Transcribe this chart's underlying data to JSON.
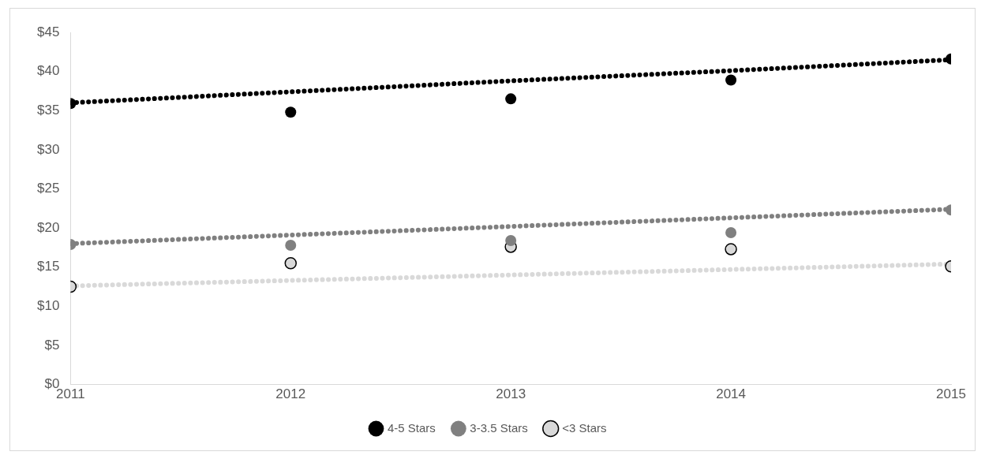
{
  "chart_data": {
    "type": "scatter",
    "marker": "circle",
    "legend": "bottom",
    "grid": false,
    "x": [
      2011,
      2012,
      2013,
      2014,
      2015
    ],
    "xlim": [
      2011,
      2015
    ],
    "xticks": [
      2011,
      2012,
      2013,
      2014,
      2015
    ],
    "ylim": [
      0,
      45
    ],
    "yticks": [
      {
        "value": 0,
        "label": "$0"
      },
      {
        "value": 5,
        "label": "$5"
      },
      {
        "value": 10,
        "label": "$10"
      },
      {
        "value": 15,
        "label": "$15"
      },
      {
        "value": 20,
        "label": "$20"
      },
      {
        "value": 25,
        "label": "$25"
      },
      {
        "value": 30,
        "label": "$30"
      },
      {
        "value": 35,
        "label": "$35"
      },
      {
        "value": 40,
        "label": "$40"
      },
      {
        "value": 45,
        "label": "$45"
      }
    ],
    "series": [
      {
        "name": "4-5 Stars",
        "color": "#000000",
        "values": [
          35.9,
          34.8,
          36.5,
          38.9,
          41.6
        ]
      },
      {
        "name": "3-3.5 Stars",
        "color": "#808080",
        "values": [
          17.9,
          17.8,
          18.4,
          19.4,
          22.3
        ]
      },
      {
        "name": "<3 Stars",
        "color": "#d9d9d9",
        "values": [
          12.5,
          15.5,
          17.6,
          17.3,
          15.1
        ]
      },
      {
        "type": "line",
        "line_style": "dotted",
        "marker": "none",
        "color": "#000000",
        "values": [
          36.0,
          37.4,
          38.8,
          40.1,
          41.5
        ]
      },
      {
        "type": "line",
        "line_style": "dotted",
        "marker": "none",
        "color": "#808080",
        "values": [
          18.0,
          19.1,
          20.2,
          21.3,
          22.4
        ]
      },
      {
        "type": "line",
        "line_style": "dotted",
        "marker": "none",
        "color": "#d9d9d9",
        "values": [
          12.6,
          13.3,
          14.0,
          14.7,
          15.4
        ]
      }
    ]
  }
}
